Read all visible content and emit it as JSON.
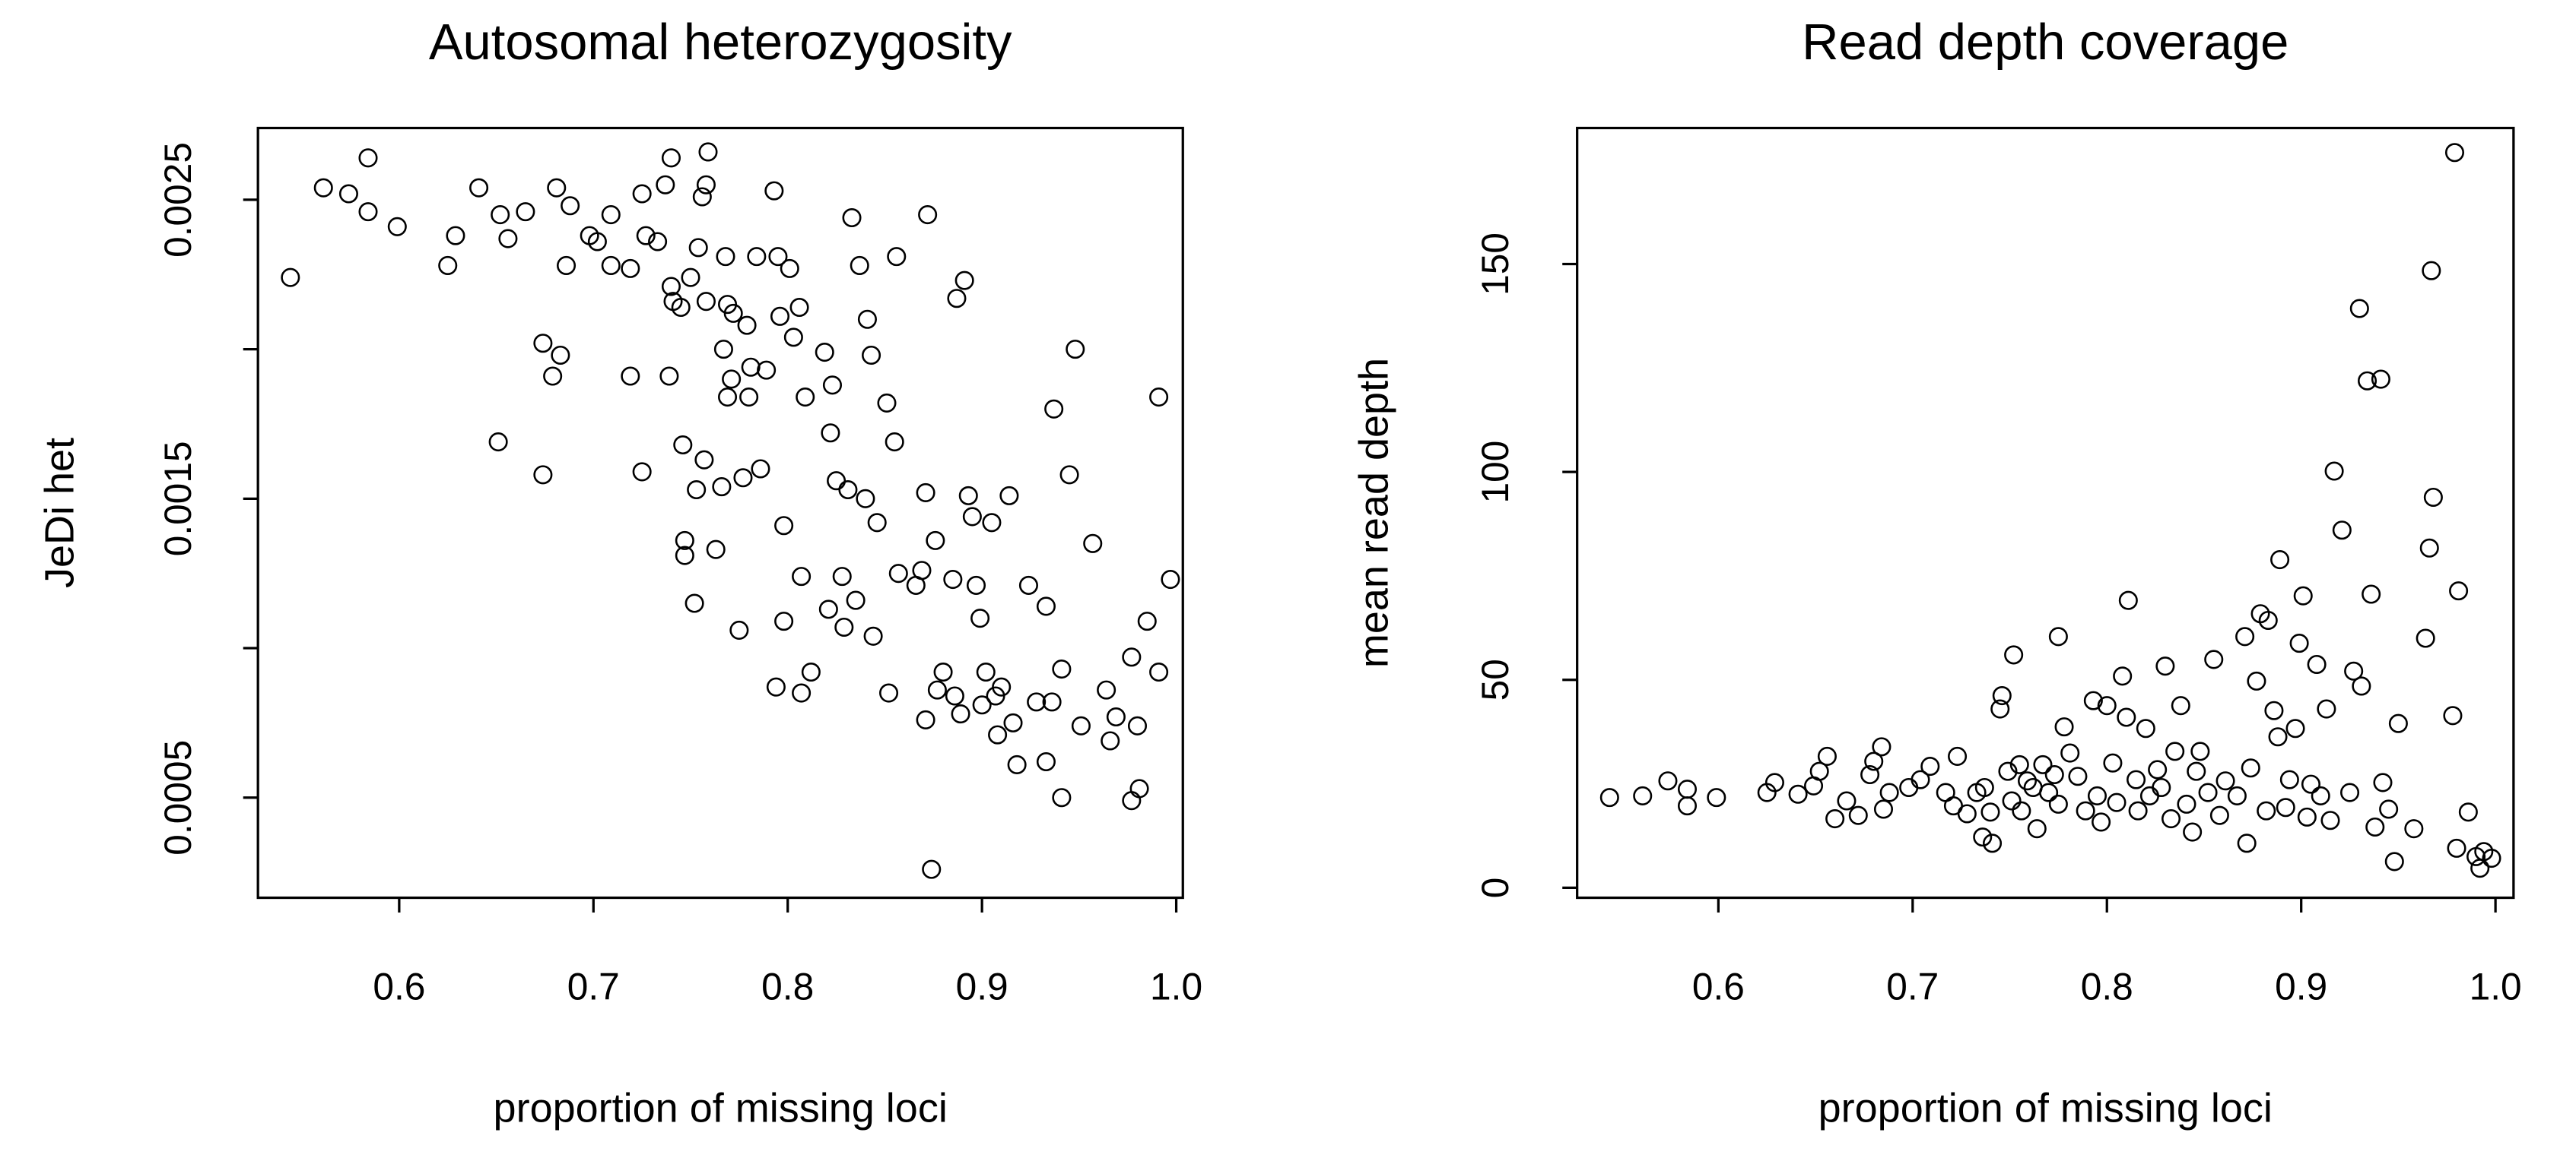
{
  "chart_data": [
    {
      "type": "scatter",
      "title": "Autosomal heterozygosity",
      "xlabel": "proportion of missing loci",
      "ylabel": "JeDi het",
      "xlim": [
        0.5273,
        1.0034
      ],
      "ylim": [
        0.000165,
        0.00274
      ],
      "xticks": [
        0.6,
        0.7,
        0.8,
        0.9,
        {
          "value": 1,
          "label": "1.0"
        }
      ],
      "yticks": [
        0.0005,
        0.0015,
        0.0025
      ],
      "yticks_unlabeled": [
        0.001,
        0.002
      ],
      "color": "#000000",
      "x": [
        0.544,
        0.561,
        0.574,
        0.584,
        0.584,
        0.599,
        0.625,
        0.629,
        0.641,
        0.652,
        0.651,
        0.656,
        0.665,
        0.674,
        0.674,
        0.679,
        0.681,
        0.683,
        0.686,
        0.688,
        0.698,
        0.702,
        0.709,
        0.709,
        0.719,
        0.719,
        0.725,
        0.725,
        0.727,
        0.733,
        0.737,
        0.739,
        0.74,
        0.74,
        0.741,
        0.745,
        0.746,
        0.747,
        0.747,
        0.75,
        0.753,
        0.752,
        0.754,
        0.756,
        0.757,
        0.758,
        0.759,
        0.758,
        0.763,
        0.766,
        0.767,
        0.768,
        0.769,
        0.769,
        0.771,
        0.772,
        0.775,
        0.777,
        0.779,
        0.78,
        0.781,
        0.784,
        0.786,
        0.789,
        0.793,
        0.794,
        0.795,
        0.796,
        0.798,
        0.798,
        0.801,
        0.803,
        0.806,
        0.807,
        0.807,
        0.809,
        0.812,
        0.819,
        0.822,
        0.821,
        0.823,
        0.825,
        0.828,
        0.829,
        0.831,
        0.833,
        0.835,
        0.837,
        0.84,
        0.841,
        0.843,
        0.844,
        0.846,
        0.851,
        0.852,
        0.855,
        0.856,
        0.857,
        0.866,
        0.869,
        0.871,
        0.871,
        0.872,
        0.874,
        0.876,
        0.877,
        0.88,
        0.885,
        0.886,
        0.887,
        0.889,
        0.891,
        0.893,
        0.895,
        0.897,
        0.899,
        0.9,
        0.902,
        0.905,
        0.907,
        0.908,
        0.91,
        0.914,
        0.916,
        0.918,
        0.924,
        0.928,
        0.933,
        0.933,
        0.936,
        0.937,
        0.941,
        0.941,
        0.945,
        0.948,
        0.951,
        0.957,
        0.964,
        0.966,
        0.969,
        0.977,
        0.977,
        0.98,
        0.981,
        0.985,
        0.991,
        0.991,
        0.997
      ],
      "y": [
        0.00224,
        0.00254,
        0.00252,
        0.00264,
        0.00246,
        0.00241,
        0.00228,
        0.00238,
        0.00254,
        0.00245,
        0.00169,
        0.00237,
        0.00246,
        0.00158,
        0.00202,
        0.00191,
        0.00254,
        0.00198,
        0.00228,
        0.00248,
        0.00238,
        0.00236,
        0.00245,
        0.00228,
        0.00227,
        0.00191,
        0.00159,
        0.00252,
        0.00238,
        0.00236,
        0.00255,
        0.00191,
        0.00264,
        0.00221,
        0.00216,
        0.00214,
        0.00168,
        0.00136,
        0.00131,
        0.00224,
        0.00153,
        0.00115,
        0.00234,
        0.00251,
        0.00163,
        0.00255,
        0.00266,
        0.00216,
        0.00133,
        0.00154,
        0.002,
        0.00231,
        0.00215,
        0.00184,
        0.0019,
        0.00212,
        0.00106,
        0.00157,
        0.00208,
        0.00184,
        0.00194,
        0.00231,
        0.0016,
        0.00193,
        0.00253,
        0.00087,
        0.00231,
        0.00211,
        0.00141,
        0.00109,
        0.00227,
        0.00204,
        0.00214,
        0.00124,
        0.00085,
        0.00184,
        0.00092,
        0.00199,
        0.00172,
        0.00113,
        0.00188,
        0.00156,
        0.00124,
        0.00107,
        0.00153,
        0.00244,
        0.00116,
        0.00228,
        0.0015,
        0.0021,
        0.00198,
        0.00104,
        0.00142,
        0.00182,
        0.00085,
        0.00169,
        0.00231,
        0.00125,
        0.00121,
        0.00126,
        0.00076,
        0.00152,
        0.00245,
        0.00026,
        0.00136,
        0.00086,
        0.00092,
        0.00123,
        0.00084,
        0.00217,
        0.00078,
        0.00223,
        0.00151,
        0.00144,
        0.00121,
        0.0011,
        0.00081,
        0.00092,
        0.00142,
        0.00084,
        0.00071,
        0.00087,
        0.00151,
        0.00075,
        0.00061,
        0.00121,
        0.00082,
        0.00114,
        0.00062,
        0.00082,
        0.0018,
        0.00093,
        0.0005,
        0.00158,
        0.002,
        0.00074,
        0.00135,
        0.00086,
        0.00069,
        0.00077,
        0.00097,
        0.00049,
        0.00074,
        0.00053,
        0.00109,
        0.00184,
        0.00092,
        0.00123
      ]
    },
    {
      "type": "scatter",
      "title": "Read depth coverage",
      "xlabel": "proportion of missing loci",
      "ylabel": "mean read depth",
      "xlim": [
        0.5273,
        1.0093
      ],
      "ylim": [
        -2.4,
        182.7
      ],
      "xticks": [
        0.6,
        0.7,
        0.8,
        0.9,
        {
          "value": 1,
          "label": "1.0"
        }
      ],
      "yticks": [
        0,
        50,
        100,
        150
      ],
      "color": "#000000",
      "x": [
        0.544,
        0.561,
        0.574,
        0.584,
        0.584,
        0.599,
        0.625,
        0.629,
        0.641,
        0.649,
        0.652,
        0.656,
        0.66,
        0.666,
        0.672,
        0.678,
        0.68,
        0.684,
        0.685,
        0.688,
        0.698,
        0.704,
        0.709,
        0.717,
        0.721,
        0.723,
        0.728,
        0.733,
        0.736,
        0.737,
        0.74,
        0.741,
        0.745,
        0.746,
        0.749,
        0.751,
        0.752,
        0.755,
        0.756,
        0.759,
        0.762,
        0.764,
        0.767,
        0.77,
        0.773,
        0.775,
        0.778,
        0.781,
        0.775,
        0.785,
        0.789,
        0.793,
        0.795,
        0.797,
        0.8,
        0.803,
        0.805,
        0.808,
        0.81,
        0.811,
        0.815,
        0.816,
        0.82,
        0.822,
        0.826,
        0.828,
        0.83,
        0.833,
        0.835,
        0.838,
        0.841,
        0.844,
        0.846,
        0.848,
        0.852,
        0.855,
        0.858,
        0.861,
        0.867,
        0.871,
        0.872,
        0.874,
        0.877,
        0.879,
        0.882,
        0.883,
        0.886,
        0.888,
        0.889,
        0.892,
        0.894,
        0.897,
        0.899,
        0.901,
        0.903,
        0.905,
        0.908,
        0.91,
        0.913,
        0.915,
        0.917,
        0.921,
        0.925,
        0.927,
        0.93,
        0.931,
        0.934,
        0.936,
        0.938,
        0.941,
        0.942,
        0.945,
        0.948,
        0.95,
        0.958,
        0.964,
        0.966,
        0.967,
        0.968,
        0.978,
        0.979,
        0.98,
        0.981,
        0.986,
        0.99,
        0.992,
        0.994,
        0.998
      ],
      "y": [
        21.7,
        22.1,
        25.7,
        23.7,
        19.7,
        21.7,
        22.9,
        25.3,
        22.5,
        24.5,
        28.0,
        31.6,
        16.6,
        20.9,
        17.4,
        27.2,
        30.4,
        33.9,
        18.9,
        22.9,
        24.1,
        26.0,
        29.2,
        22.9,
        19.7,
        31.6,
        17.8,
        22.9,
        12.2,
        24.1,
        18.2,
        10.7,
        43.0,
        46.2,
        28.0,
        20.9,
        56.0,
        29.6,
        18.5,
        25.7,
        24.1,
        14.2,
        29.6,
        22.9,
        27.2,
        20.1,
        38.7,
        32.4,
        60.4,
        26.8,
        18.5,
        45.0,
        22.1,
        15.8,
        43.8,
        30.0,
        20.5,
        50.9,
        41.0,
        69.1,
        26.0,
        18.5,
        38.3,
        22.1,
        28.4,
        24.1,
        53.3,
        16.6,
        32.8,
        43.8,
        20.1,
        13.4,
        28.0,
        32.8,
        22.9,
        54.9,
        17.4,
        25.7,
        22.1,
        60.4,
        10.7,
        28.8,
        49.7,
        65.9,
        18.5,
        64.3,
        42.6,
        36.3,
        78.9,
        19.3,
        26.0,
        38.3,
        58.8,
        70.2,
        17.0,
        24.9,
        53.7,
        22.1,
        43.0,
        16.2,
        100.2,
        86.0,
        22.9,
        52.1,
        139.3,
        48.5,
        121.9,
        70.6,
        14.6,
        122.3,
        25.3,
        18.9,
        6.3,
        39.5,
        14.2,
        60.0,
        81.7,
        148.4,
        93.9,
        41.4,
        176.8,
        9.5,
        71.4,
        18.2,
        7.5,
        4.7,
        8.7,
        7.1
      ]
    }
  ]
}
